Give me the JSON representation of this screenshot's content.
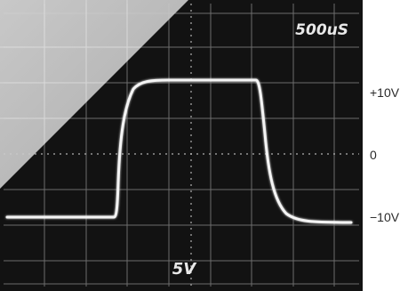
{
  "oscilloscope": {
    "timebase_label": "500uS",
    "volts_per_div_label": "5V"
  },
  "axis_labels": {
    "plus": "+10V",
    "zero": "0",
    "minus": "−10V"
  },
  "colors": {
    "screen": "#111111",
    "graticule": "#8a8a8a",
    "trace": "#f4f4f4",
    "glare": "#c9c9c9",
    "page": "#ffffff",
    "label_text": "#2a2a2a"
  }
}
